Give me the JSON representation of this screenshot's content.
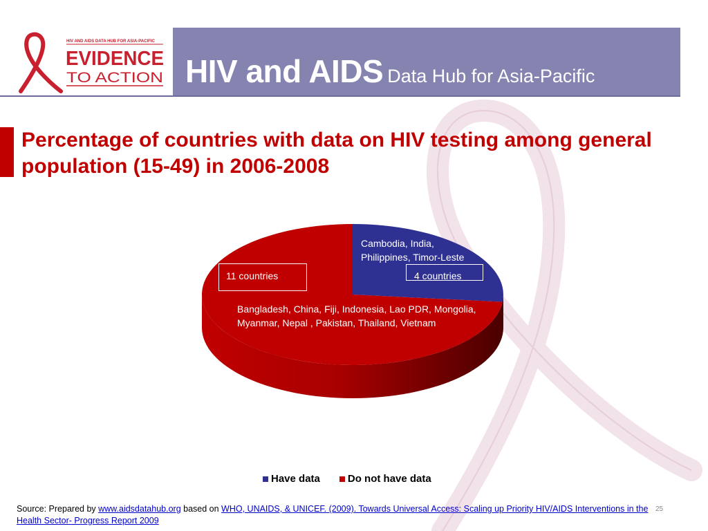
{
  "header": {
    "logo": {
      "tagline": "HIV AND AIDS DATA HUB FOR ASIA-PACIFIC",
      "word1": "EVIDENCE",
      "word2": "TO ACTION"
    },
    "title_main": "HIV and AIDS",
    "title_sub": "Data Hub for Asia-Pacific"
  },
  "colors": {
    "header_band": "#8583b0",
    "title_red": "#c00000",
    "have_data": "#2e3192",
    "no_data": "#c00000",
    "ribbon_pink": "#f2e2ea"
  },
  "slide_title": "Percentage of countries with data on HIV testing among general population (15-49) in 2006-2008",
  "chart_data": {
    "type": "pie",
    "style": "3d",
    "series": [
      {
        "name": "Have data",
        "value": 4,
        "count_label": "4 countries",
        "countries_label": "Cambodia, India, Philippines, Timor-Leste"
      },
      {
        "name": "Do not have data",
        "value": 11,
        "count_label": "11 countries",
        "countries_label": "Bangladesh,  China, Fiji,  Indonesia, Lao PDR, Mongolia,  Myanmar, Nepal , Pakistan, Thailand, Vietnam"
      }
    ],
    "legend_position": "bottom"
  },
  "legend": {
    "have_data": "Have data",
    "no_data": "Do not have data"
  },
  "source": {
    "prefix": "Source: Prepared by ",
    "link1": "www.aidsdatahub.org",
    "middle": " based on ",
    "link2": "WHO, UNAIDS, & UNICEF. (2009). Towards Universal Access: Scaling up Priority HIV/AIDS Interventions in the Health Sector- Progress Report 2009"
  },
  "page_number": "25"
}
